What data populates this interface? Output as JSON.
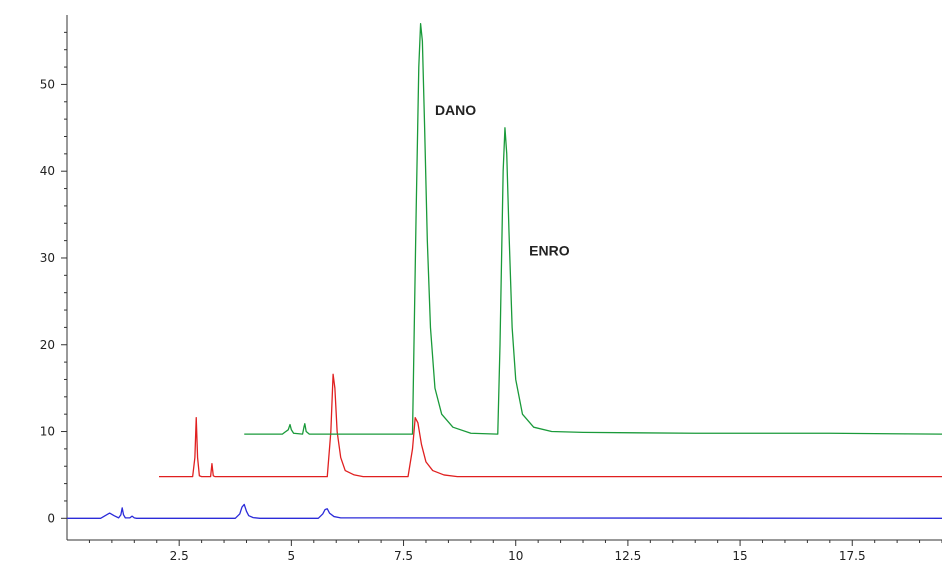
{
  "chart_data": {
    "type": "line",
    "title": "",
    "xlabel": "",
    "ylabel": "",
    "xlim": [
      0,
      19.5
    ],
    "ylim": [
      -2.5,
      58
    ],
    "x_ticks": [
      2.5,
      5,
      7.5,
      10,
      12.5,
      15,
      17.5
    ],
    "x_tick_labels": [
      "2.5",
      "5",
      "7.5",
      "10",
      "12.5",
      "15",
      "17.5"
    ],
    "y_ticks": [
      0,
      10,
      20,
      30,
      40,
      50
    ],
    "y_tick_labels": [
      "0",
      "10",
      "20",
      "30",
      "40",
      "50"
    ],
    "grid": false,
    "legend": "none",
    "series": [
      {
        "color": "#2b2bd9",
        "x": [
          0,
          0.75,
          0.85,
          0.95,
          1.05,
          1.15,
          1.2,
          1.23,
          1.26,
          1.3,
          1.4,
          1.45,
          1.5,
          1.55,
          3.75,
          3.85,
          3.9,
          3.95,
          4.0,
          4.05,
          4.15,
          4.3,
          5.6,
          5.7,
          5.75,
          5.8,
          5.85,
          5.95,
          6.1,
          19.5
        ],
        "y": [
          0,
          0,
          0.3,
          0.6,
          0.3,
          0.05,
          0.4,
          1.2,
          0.4,
          0.05,
          0.05,
          0.25,
          0.05,
          0,
          0,
          0.5,
          1.3,
          1.6,
          0.8,
          0.3,
          0.08,
          0,
          0,
          0.5,
          1.0,
          1.1,
          0.6,
          0.2,
          0.05,
          0
        ]
      },
      {
        "color": "#e02020",
        "x": [
          2.05,
          2.8,
          2.85,
          2.88,
          2.91,
          2.95,
          3.0,
          3.2,
          3.23,
          3.26,
          3.3,
          5.8,
          5.88,
          5.93,
          5.97,
          6.02,
          6.1,
          6.2,
          6.4,
          6.6,
          7.6,
          7.7,
          7.76,
          7.82,
          7.9,
          8.0,
          8.15,
          8.4,
          8.7,
          19.5
        ],
        "y": [
          4.8,
          4.8,
          7.0,
          11.6,
          7.0,
          4.9,
          4.8,
          4.8,
          6.3,
          4.9,
          4.8,
          4.8,
          10.0,
          16.6,
          15.0,
          10.0,
          7.0,
          5.5,
          5.0,
          4.8,
          4.8,
          8.0,
          11.6,
          11.0,
          8.5,
          6.5,
          5.5,
          5.0,
          4.8,
          4.8
        ]
      },
      {
        "color": "#1a9a3a",
        "x": [
          3.95,
          4.8,
          4.85,
          4.93,
          4.97,
          5.0,
          5.05,
          5.25,
          5.28,
          5.3,
          5.33,
          5.4,
          7.7,
          7.78,
          7.84,
          7.88,
          7.92,
          7.97,
          8.03,
          8.1,
          8.2,
          8.35,
          8.6,
          9.0,
          9.6,
          9.65,
          9.72,
          9.76,
          9.8,
          9.85,
          9.92,
          10.0,
          10.15,
          10.4,
          10.8,
          11.5,
          14.0,
          17.0,
          19.5
        ],
        "y": [
          9.7,
          9.7,
          9.9,
          10.2,
          10.8,
          10.2,
          9.8,
          9.7,
          10.5,
          10.9,
          10.0,
          9.7,
          9.7,
          35.0,
          52.0,
          57.0,
          55.0,
          45.0,
          32.0,
          22.0,
          15.0,
          12.0,
          10.5,
          9.8,
          9.7,
          20.0,
          40.0,
          45.0,
          42.0,
          33.0,
          22.0,
          16.0,
          12.0,
          10.5,
          10.0,
          9.9,
          9.8,
          9.8,
          9.7
        ]
      }
    ],
    "annotations": [
      {
        "text": "DANO",
        "x": 8.2,
        "y": 46.5
      },
      {
        "text": "ENRO",
        "x": 10.3,
        "y": 30.3
      }
    ]
  }
}
